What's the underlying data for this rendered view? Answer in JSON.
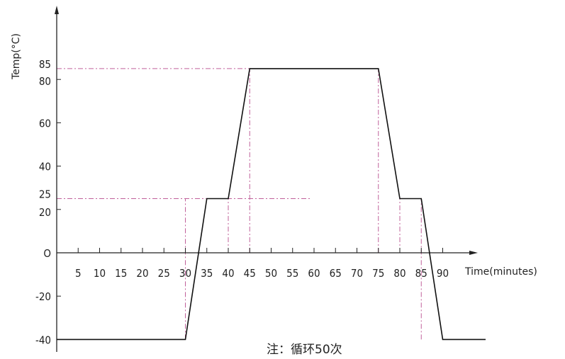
{
  "chart_data": {
    "type": "line",
    "ylabel": "Temp(°C)",
    "xlabel": "Time(minutes)",
    "note": "注：循环50次",
    "x_ticks": [
      "5",
      "10",
      "15",
      "20",
      "25",
      "30",
      "35",
      "40",
      "45",
      "50",
      "55",
      "60",
      "65",
      "70",
      "75",
      "80",
      "85",
      "90"
    ],
    "y_ticks": [
      "85",
      "80",
      "60",
      "40",
      "25",
      "20",
      "O",
      "-20",
      "-40"
    ],
    "series": [
      {
        "x": [
          0,
          30,
          35,
          40,
          45,
          75,
          80,
          85,
          90,
          100
        ],
        "y": [
          -40,
          -40,
          25,
          25,
          85,
          85,
          25,
          25,
          -40,
          -40
        ]
      }
    ],
    "reference_lines": {
      "horizontal": [
        85,
        25
      ],
      "vertical": [
        30,
        40,
        45,
        75,
        80,
        85
      ]
    },
    "xlim": [
      -2,
      100
    ],
    "ylim": [
      -40,
      100
    ],
    "grid": false,
    "colors": {
      "line": "#111111",
      "reference": "#c0609a",
      "axis": "#222222"
    }
  }
}
